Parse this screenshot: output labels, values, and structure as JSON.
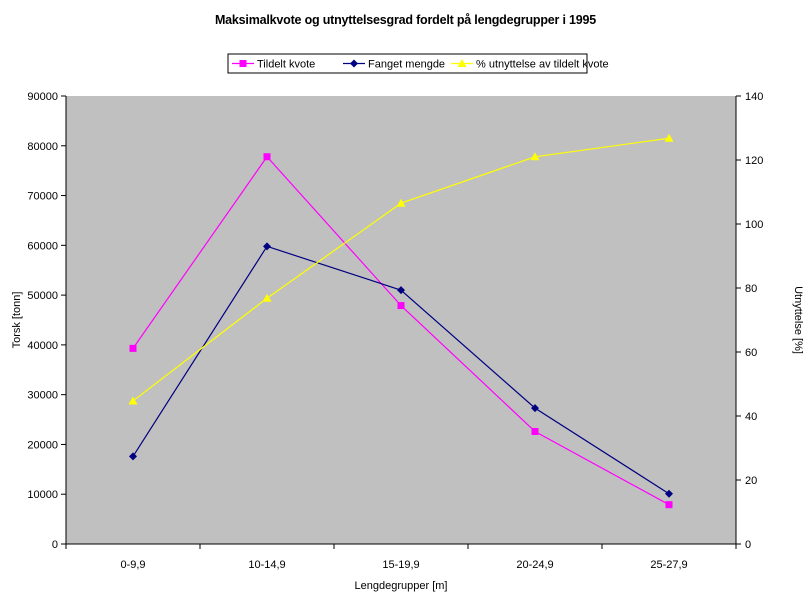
{
  "chart_data": {
    "type": "line",
    "title": "Maksimalkvote og utnyttelsesgrad fordelt på lengdegrupper i 1995",
    "xlabel": "Lengdegrupper [m]",
    "ylabel": "Torsk [tonn]",
    "y2label": "Utnyttelse [%]",
    "categories": [
      "0-9,9",
      "10-14,9",
      "15-19,9",
      "20-24,9",
      "25-27,9"
    ],
    "ylim": [
      0,
      90000
    ],
    "yticks": [
      0,
      10000,
      20000,
      30000,
      40000,
      50000,
      60000,
      70000,
      80000,
      90000
    ],
    "y2lim": [
      0,
      140
    ],
    "y2ticks": [
      0,
      20,
      40,
      60,
      80,
      100,
      120,
      140
    ],
    "legend_position": "top",
    "grid": false,
    "plot_background": "#c0c0c0",
    "series": [
      {
        "name": "Tildelt kvote",
        "axis": "left",
        "color": "#ff00ff",
        "marker": "square",
        "values": [
          39300,
          77800,
          47900,
          22600,
          7900
        ]
      },
      {
        "name": "Fanget mengde",
        "axis": "left",
        "color": "#000080",
        "marker": "diamond",
        "values": [
          17600,
          59800,
          51000,
          27300,
          10100
        ]
      },
      {
        "name": "% utnyttelse av tildelt kvote",
        "axis": "right",
        "color": "#ffff00",
        "marker": "triangle",
        "values": [
          44.7,
          76.8,
          106.5,
          121.0,
          126.8
        ]
      }
    ]
  }
}
